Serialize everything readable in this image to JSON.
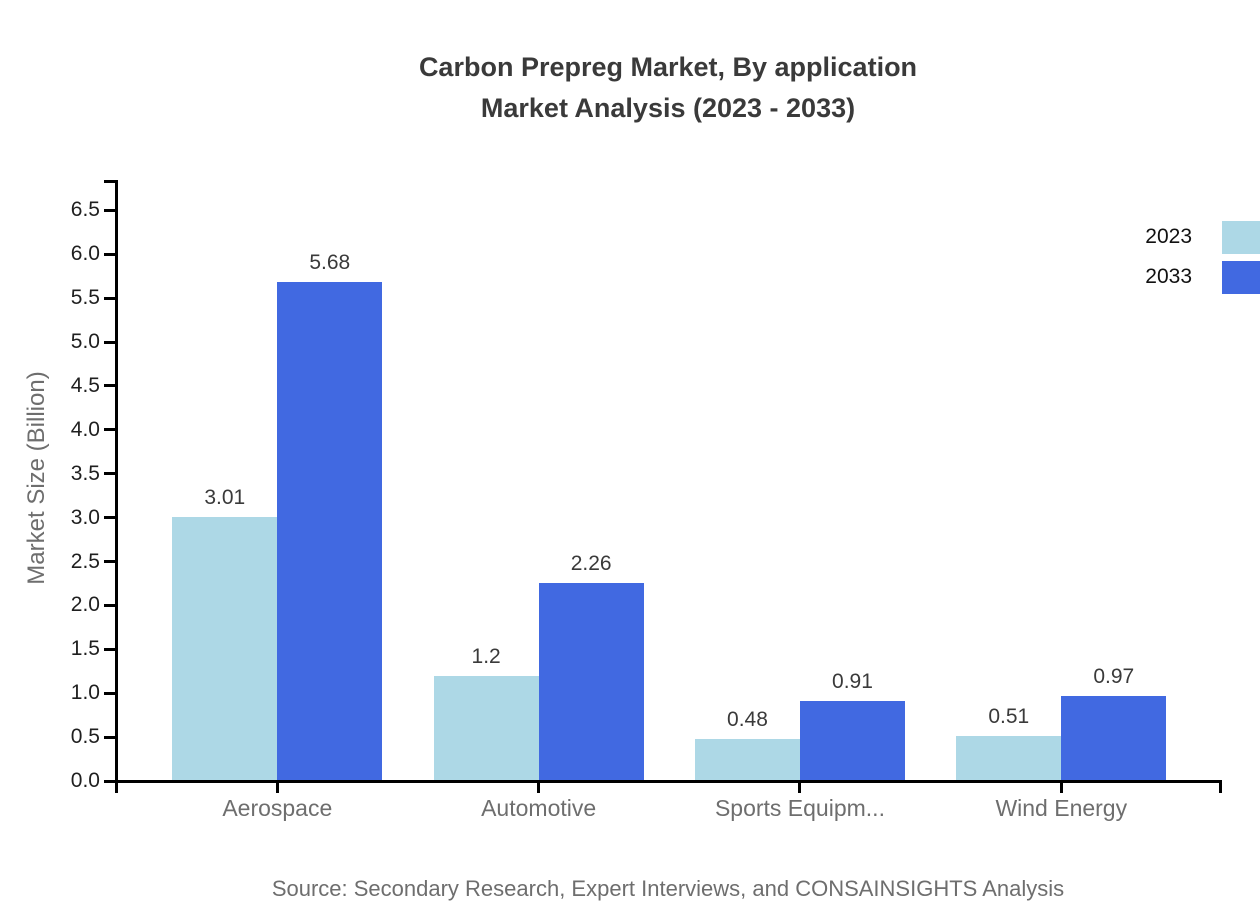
{
  "title": {
    "line1": "Carbon Prepreg Market, By application",
    "line2": "Market Analysis (2023 - 2033)"
  },
  "source_note": "Source: Secondary Research, Expert Interviews, and CONSAINSIGHTS Analysis",
  "colors": {
    "series_2023": "#ADD8E6",
    "series_2033": "#4169E1",
    "axis": "#000000",
    "title_text": "#3A3A3A",
    "tick_label_text": "#1F1F1F",
    "value_label_text": "#3A3A3A",
    "muted_text": "#6E6E6E",
    "background": "#FFFFFF"
  },
  "chart_data": {
    "type": "bar",
    "title": "Carbon Prepreg Market, By application Market Analysis (2023 - 2033)",
    "categories": [
      "Aerospace",
      "Automotive",
      "Sports Equipm...",
      "Wind Energy"
    ],
    "series": [
      {
        "name": "2023",
        "color": "#ADD8E6",
        "values": [
          3.01,
          1.2,
          0.48,
          0.51
        ],
        "value_labels": [
          "3.01",
          "1.2",
          "0.48",
          "0.51"
        ]
      },
      {
        "name": "2033",
        "color": "#4169E1",
        "values": [
          5.68,
          2.26,
          0.91,
          0.97
        ],
        "value_labels": [
          "5.68",
          "2.26",
          "0.91",
          "0.97"
        ]
      }
    ],
    "xlabel": "",
    "ylabel": "Market Size (Billion)",
    "ylim": [
      0.0,
      6.5
    ],
    "ytick_step": 0.5,
    "ytick_label_format": "one_decimal",
    "grid": false,
    "legend_position": "right-outside-top",
    "bar_value_labels_shown": true
  },
  "legend": {
    "items": [
      {
        "label": "2023",
        "color": "#ADD8E6"
      },
      {
        "label": "2033",
        "color": "#4169E1"
      }
    ]
  }
}
